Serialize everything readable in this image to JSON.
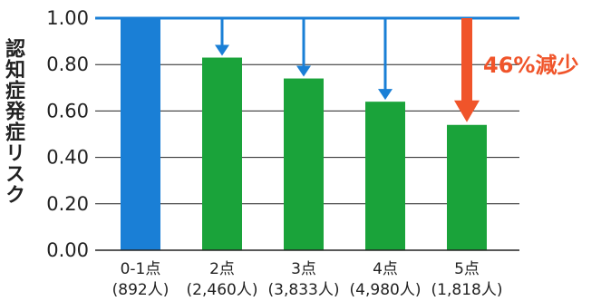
{
  "chart_data": {
    "type": "bar",
    "ylabel": "認知症発症リスク",
    "ylim": [
      0,
      1.0
    ],
    "yticks": [
      "0.00",
      "0.20",
      "0.40",
      "0.60",
      "0.80",
      "1.00"
    ],
    "grid": true,
    "categories": [
      "0-1点",
      "2点",
      "3点",
      "4点",
      "5点"
    ],
    "sample_sizes": [
      "(892人)",
      "(2,460人)",
      "(3,833人)",
      "(4,980人)",
      "(1,818人)"
    ],
    "values": [
      1.0,
      0.83,
      0.74,
      0.64,
      0.54
    ],
    "bar_colors": [
      "#1a7fd6",
      "#1aa33a",
      "#1aa33a",
      "#1aa33a",
      "#1aa33a"
    ],
    "reference_line": {
      "value": 1.0,
      "color": "#1a7fd6"
    },
    "annotation": {
      "text": "46%減少",
      "color": "#f0542a",
      "category_index": 4
    }
  }
}
